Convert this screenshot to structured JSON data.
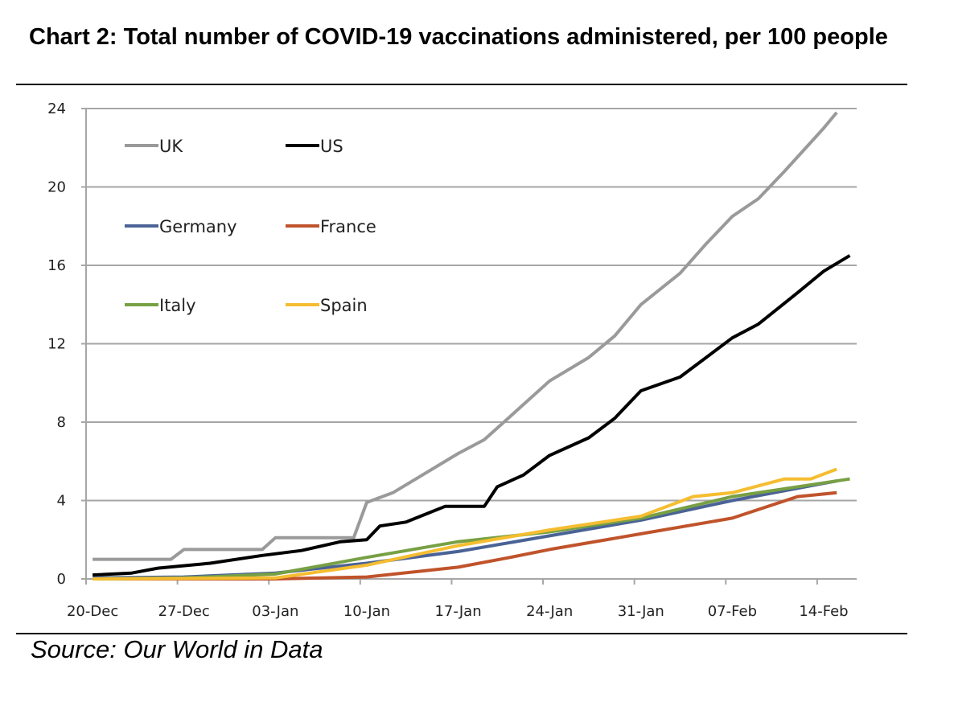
{
  "title": "Chart 2: Total number of COVID-19 vaccinations administered, per 100 people",
  "source": "Source: Our World in Data",
  "chart_data": {
    "type": "line",
    "title": "Chart 2: Total number of COVID-19 vaccinations administered, per 100 people",
    "xlabel": "",
    "ylabel": "",
    "ylim": [
      0,
      24
    ],
    "yticks": [
      0,
      4,
      8,
      12,
      16,
      20,
      24
    ],
    "xtick_labels": [
      "20-Dec",
      "27-Dec",
      "03-Jan",
      "10-Jan",
      "17-Jan",
      "24-Jan",
      "31-Jan",
      "07-Feb",
      "14-Feb"
    ],
    "x_start": "2020-12-20",
    "grid": true,
    "legend": "top-left",
    "series": [
      {
        "name": "UK",
        "color": "#9a9a9a",
        "points": [
          [
            "2020-12-20",
            1.0
          ],
          [
            "2020-12-26",
            1.0
          ],
          [
            "2020-12-27",
            1.5
          ],
          [
            "2021-01-02",
            1.5
          ],
          [
            "2021-01-03",
            2.1
          ],
          [
            "2021-01-09",
            2.1
          ],
          [
            "2021-01-10",
            3.9
          ],
          [
            "2021-01-12",
            4.4
          ],
          [
            "2021-01-14",
            5.2
          ],
          [
            "2021-01-17",
            6.4
          ],
          [
            "2021-01-19",
            7.1
          ],
          [
            "2021-01-21",
            8.3
          ],
          [
            "2021-01-24",
            10.1
          ],
          [
            "2021-01-27",
            11.3
          ],
          [
            "2021-01-29",
            12.4
          ],
          [
            "2021-01-31",
            14.0
          ],
          [
            "2021-02-03",
            15.6
          ],
          [
            "2021-02-05",
            17.1
          ],
          [
            "2021-02-07",
            18.5
          ],
          [
            "2021-02-09",
            19.4
          ],
          [
            "2021-02-11",
            20.8
          ],
          [
            "2021-02-14",
            23.0
          ],
          [
            "2021-02-15",
            23.8
          ]
        ]
      },
      {
        "name": "US",
        "color": "#000000",
        "points": [
          [
            "2020-12-20",
            0.2
          ],
          [
            "2020-12-23",
            0.3
          ],
          [
            "2020-12-25",
            0.55
          ],
          [
            "2020-12-29",
            0.8
          ],
          [
            "2021-01-02",
            1.2
          ],
          [
            "2021-01-05",
            1.45
          ],
          [
            "2021-01-08",
            1.9
          ],
          [
            "2021-01-10",
            2.0
          ],
          [
            "2021-01-11",
            2.7
          ],
          [
            "2021-01-13",
            2.9
          ],
          [
            "2021-01-16",
            3.7
          ],
          [
            "2021-01-19",
            3.7
          ],
          [
            "2021-01-20",
            4.7
          ],
          [
            "2021-01-22",
            5.3
          ],
          [
            "2021-01-24",
            6.3
          ],
          [
            "2021-01-27",
            7.2
          ],
          [
            "2021-01-29",
            8.2
          ],
          [
            "2021-01-31",
            9.6
          ],
          [
            "2021-02-03",
            10.3
          ],
          [
            "2021-02-05",
            11.3
          ],
          [
            "2021-02-07",
            12.3
          ],
          [
            "2021-02-09",
            13.0
          ],
          [
            "2021-02-12",
            14.6
          ],
          [
            "2021-02-14",
            15.7
          ],
          [
            "2021-02-16",
            16.5
          ]
        ]
      },
      {
        "name": "Germany",
        "color": "#4a6396",
        "points": [
          [
            "2020-12-20",
            0.05
          ],
          [
            "2020-12-27",
            0.1
          ],
          [
            "2021-01-03",
            0.3
          ],
          [
            "2021-01-10",
            0.8
          ],
          [
            "2021-01-17",
            1.4
          ],
          [
            "2021-01-24",
            2.2
          ],
          [
            "2021-01-31",
            3.0
          ],
          [
            "2021-02-07",
            4.0
          ],
          [
            "2021-02-15",
            5.0
          ]
        ]
      },
      {
        "name": "France",
        "color": "#c0532b",
        "points": [
          [
            "2020-12-20",
            0.0
          ],
          [
            "2021-01-03",
            0.0
          ],
          [
            "2021-01-10",
            0.1
          ],
          [
            "2021-01-17",
            0.6
          ],
          [
            "2021-01-21",
            1.1
          ],
          [
            "2021-01-24",
            1.5
          ],
          [
            "2021-01-31",
            2.3
          ],
          [
            "2021-02-07",
            3.1
          ],
          [
            "2021-02-12",
            4.2
          ],
          [
            "2021-02-15",
            4.4
          ]
        ]
      },
      {
        "name": "Italy",
        "color": "#77a044",
        "points": [
          [
            "2020-12-20",
            0.0
          ],
          [
            "2020-12-27",
            0.05
          ],
          [
            "2021-01-03",
            0.25
          ],
          [
            "2021-01-10",
            1.1
          ],
          [
            "2021-01-17",
            1.9
          ],
          [
            "2021-01-24",
            2.4
          ],
          [
            "2021-01-31",
            3.1
          ],
          [
            "2021-02-07",
            4.2
          ],
          [
            "2021-02-16",
            5.1
          ]
        ]
      },
      {
        "name": "Spain",
        "color": "#f5bd30",
        "points": [
          [
            "2020-12-20",
            0.0
          ],
          [
            "2021-01-03",
            0.05
          ],
          [
            "2021-01-10",
            0.7
          ],
          [
            "2021-01-17",
            1.7
          ],
          [
            "2021-01-24",
            2.5
          ],
          [
            "2021-01-31",
            3.2
          ],
          [
            "2021-02-04",
            4.2
          ],
          [
            "2021-02-07",
            4.4
          ],
          [
            "2021-02-11",
            5.1
          ],
          [
            "2021-02-13",
            5.1
          ],
          [
            "2021-02-15",
            5.6
          ]
        ]
      }
    ]
  }
}
